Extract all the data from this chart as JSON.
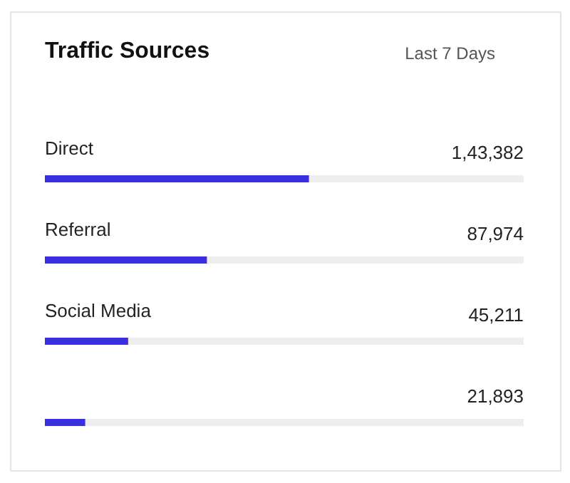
{
  "chart_data": {
    "type": "bar",
    "orientation": "horizontal",
    "title": "Traffic Sources",
    "annotations": [
      "Last 7 Days"
    ],
    "categories": [
      "Direct",
      "Referral",
      "Social Media",
      null
    ],
    "values": [
      143382,
      87974,
      45211,
      21893
    ],
    "value_labels": [
      "1,43,382",
      "87,974",
      "45,211",
      "21,893"
    ],
    "color": "#3b2de0",
    "xlim": [
      0,
      260000
    ],
    "grid": false
  }
}
